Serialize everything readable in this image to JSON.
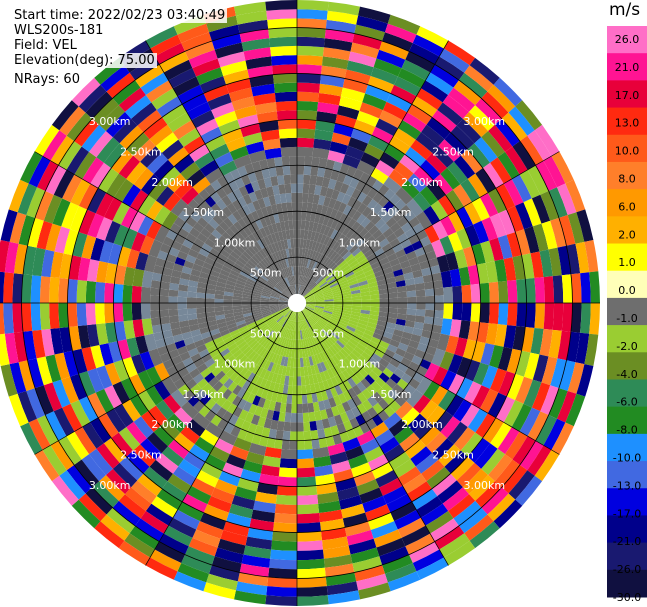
{
  "meta": {
    "start_time": "Start time: 2022/02/23 03:40:49",
    "instrument": "WLS200s-181",
    "field": "Field: VEL",
    "elevation": "Elevation(deg): 75.00",
    "nrays": "NRays: 60"
  },
  "chart_data": {
    "type": "heatmap",
    "projection": "polar-ppi",
    "n_rays": 60,
    "ring_labels": [
      "500m",
      "1.00km",
      "1.50km",
      "2.00km",
      "2.50km",
      "3.00km"
    ],
    "ring_ranges_km": [
      0.5,
      1.0,
      1.5,
      2.0,
      2.5,
      3.0
    ],
    "max_range_km": 3.3,
    "colorbar": {
      "unit": "m/s",
      "ticks": [
        "26.0",
        "21.0",
        "17.0",
        "13.0",
        "10.0",
        "8.0",
        "6.0",
        "2.0",
        "1.0",
        "0.0",
        "-1.0",
        "-2.0",
        "-4.0",
        "-6.0",
        "-8.0",
        "-10.0",
        "-13.0",
        "-17.0",
        "-21.0",
        "-26.0",
        "-30.0"
      ],
      "bins": [
        {
          "min": 26,
          "max": 30,
          "color": "#ff6ec7"
        },
        {
          "min": 21,
          "max": 26,
          "color": "#ff1493"
        },
        {
          "min": 17,
          "max": 21,
          "color": "#e8003a"
        },
        {
          "min": 13,
          "max": 17,
          "color": "#ff2a10"
        },
        {
          "min": 10,
          "max": 13,
          "color": "#ff5a1a"
        },
        {
          "min": 8,
          "max": 10,
          "color": "#ff7f2a"
        },
        {
          "min": 6,
          "max": 8,
          "color": "#ff9900"
        },
        {
          "min": 2,
          "max": 6,
          "color": "#ffb000"
        },
        {
          "min": 1,
          "max": 2,
          "color": "#ffff00"
        },
        {
          "min": 0,
          "max": 1,
          "color": "#ffffb8"
        },
        {
          "min": -1,
          "max": 0,
          "color": "#6e6e6e"
        },
        {
          "min": -2,
          "max": -1,
          "color": "#9acd32"
        },
        {
          "min": -4,
          "max": -2,
          "color": "#6b8e23"
        },
        {
          "min": -6,
          "max": -4,
          "color": "#2e8b57"
        },
        {
          "min": -8,
          "max": -6,
          "color": "#228b22"
        },
        {
          "min": -10,
          "max": -8,
          "color": "#1e90ff"
        },
        {
          "min": -13,
          "max": -10,
          "color": "#4169e1"
        },
        {
          "min": -17,
          "max": -13,
          "color": "#0000e0"
        },
        {
          "min": -21,
          "max": -17,
          "color": "#00008b"
        },
        {
          "min": -26,
          "max": -21,
          "color": "#191970"
        },
        {
          "min": -30,
          "max": -26,
          "color": "#101040"
        }
      ]
    },
    "near_field": {
      "approach_half": {
        "range_km": [
          0.1,
          1.2
        ],
        "velocity": -1.5,
        "color": "#9acd32"
      },
      "receding_half": {
        "range_km": [
          0.1,
          1.2
        ],
        "velocity": -0.5,
        "color": "#6e6e6e"
      },
      "mid_zone": {
        "range_km": [
          1.2,
          1.6
        ],
        "color": "#778899"
      }
    }
  }
}
